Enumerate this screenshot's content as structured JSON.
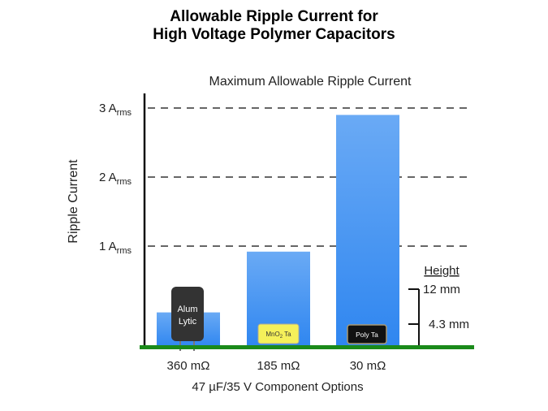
{
  "slide_title_line1": "Allowable Ripple Current for",
  "slide_title_line2": "High Voltage Polymer Capacitors",
  "chart_data": {
    "type": "bar",
    "title": "Maximum Allowable Ripple Current",
    "xlabel": "47 µF/35 V Component Options",
    "ylabel": "Ripple Current",
    "categories": [
      "360 mΩ",
      "185 mΩ",
      "30 mΩ"
    ],
    "values": [
      0.04,
      0.92,
      2.9
    ],
    "ylim": [
      0,
      3.2
    ],
    "yticks": [
      {
        "value": 1,
        "main": "1 A",
        "sub": "rms"
      },
      {
        "value": 2,
        "main": "2 A",
        "sub": "rms"
      },
      {
        "value": 3,
        "main": "3 A",
        "sub": "rms"
      }
    ],
    "grid": "dashed horizontal",
    "component_labels": [
      {
        "line1": "Alum",
        "line2": "Lytic"
      },
      {
        "line1": "MnO",
        "sub": "2",
        "line2": " Ta"
      },
      {
        "line1": "Poly Ta"
      }
    ],
    "height_legend": {
      "title": "Height",
      "tall": "12 mm",
      "short": "4.3 mm"
    },
    "colors": {
      "bar": "#2f86f0",
      "bar_light": "#6aaaf5",
      "baseline": "#1a8a1a",
      "grid": "#666666",
      "alum": "#333333",
      "mno2": "#f5f05a",
      "poly": "#111111"
    }
  }
}
